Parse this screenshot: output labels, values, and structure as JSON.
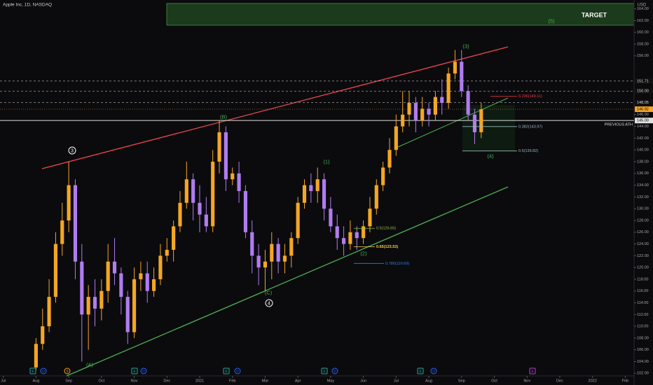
{
  "chart_data": {
    "type": "candlestick",
    "title": "Apple Inc, 1D, NASDAQ",
    "currency": "USD",
    "up_color": "#f5a623",
    "down_color": "#b07cf0",
    "grid": false,
    "xlim": [
      -0.1,
      19.27
    ],
    "xticks": [
      {
        "value": 0,
        "label": "Jul"
      },
      {
        "value": 1,
        "label": "Aug"
      },
      {
        "value": 2,
        "label": "Sep"
      },
      {
        "value": 3,
        "label": "Oct"
      },
      {
        "value": 4,
        "label": "Nov"
      },
      {
        "value": 5,
        "label": "Dec"
      },
      {
        "value": 6,
        "label": "2021"
      },
      {
        "value": 7,
        "label": "Feb"
      },
      {
        "value": 8,
        "label": "Mar"
      },
      {
        "value": 9,
        "label": "Apr"
      },
      {
        "value": 10,
        "label": "May"
      },
      {
        "value": 11,
        "label": "Jun"
      },
      {
        "value": 12,
        "label": "Jul"
      },
      {
        "value": 13,
        "label": "Aug"
      },
      {
        "value": 14,
        "label": "Sep"
      },
      {
        "value": 15,
        "label": "Oct"
      },
      {
        "value": 16,
        "label": "Nov"
      },
      {
        "value": 17,
        "label": "Dec"
      },
      {
        "value": 18,
        "label": "2022"
      },
      {
        "value": 19,
        "label": "Feb"
      }
    ],
    "ylim": [
      101.2,
      165.5
    ],
    "yticks": [
      {
        "value": 102,
        "label": "102.00"
      },
      {
        "value": 104,
        "label": "104.00"
      },
      {
        "value": 106,
        "label": "106.00"
      },
      {
        "value": 108,
        "label": "108.00"
      },
      {
        "value": 110,
        "label": "110.00"
      },
      {
        "value": 112,
        "label": "112.00"
      },
      {
        "value": 114,
        "label": "114.00"
      },
      {
        "value": 116,
        "label": "116.00"
      },
      {
        "value": 118,
        "label": "118.00"
      },
      {
        "value": 120,
        "label": "120.00"
      },
      {
        "value": 122,
        "label": "122.00"
      },
      {
        "value": 124,
        "label": "124.00"
      },
      {
        "value": 126,
        "label": "126.00"
      },
      {
        "value": 128,
        "label": "128.00"
      },
      {
        "value": 130,
        "label": "130.00"
      },
      {
        "value": 132,
        "label": "132.00"
      },
      {
        "value": 134,
        "label": "134.00"
      },
      {
        "value": 136,
        "label": "136.00"
      },
      {
        "value": 138,
        "label": "138.00"
      },
      {
        "value": 140,
        "label": "140.00"
      },
      {
        "value": 142,
        "label": "142.00"
      },
      {
        "value": 144,
        "label": "144.00"
      },
      {
        "value": 146,
        "label": "146.00"
      },
      {
        "value": 156,
        "label": "156.00"
      },
      {
        "value": 158,
        "label": "158.00"
      },
      {
        "value": 160,
        "label": "160.00"
      },
      {
        "value": 162,
        "label": "162.00"
      },
      {
        "value": 164,
        "label": "164.00"
      }
    ],
    "x": [
      1.0,
      1.2,
      1.4,
      1.6,
      1.8,
      2.0,
      2.2,
      2.4,
      2.6,
      2.8,
      3.0,
      3.2,
      3.4,
      3.6,
      3.8,
      4.0,
      4.2,
      4.4,
      4.6,
      4.8,
      5.0,
      5.2,
      5.4,
      5.6,
      5.8,
      6.0,
      6.2,
      6.4,
      6.6,
      6.8,
      7.0,
      7.2,
      7.4,
      7.6,
      7.8,
      8.0,
      8.2,
      8.4,
      8.6,
      8.8,
      9.0,
      9.2,
      9.4,
      9.6,
      9.8,
      10.0,
      10.2,
      10.4,
      10.6,
      10.8,
      11.0,
      11.2,
      11.4,
      11.6,
      11.8,
      12.0,
      12.2,
      12.4,
      12.6,
      12.8,
      13.0,
      13.2,
      13.4,
      13.6,
      13.8,
      14.0,
      14.2,
      14.4,
      14.6
    ],
    "open": [
      103,
      107,
      110,
      115,
      124,
      128,
      134,
      121,
      112,
      115,
      113,
      116,
      121,
      119,
      115,
      109,
      118,
      119,
      116,
      118,
      122,
      123,
      127,
      131,
      135,
      131,
      129,
      127,
      138,
      143,
      135,
      136,
      133,
      126,
      122,
      120,
      121,
      124,
      121,
      122,
      125,
      131,
      134,
      133,
      135,
      130,
      127,
      125,
      124,
      126,
      125,
      127,
      130,
      134,
      137,
      140,
      144,
      146,
      148,
      145,
      147,
      146,
      149,
      148,
      153,
      155,
      150,
      146,
      143
    ],
    "high": [
      108,
      113,
      118,
      126,
      131,
      138,
      135,
      124,
      117,
      118,
      118,
      124,
      125,
      120,
      116,
      120,
      121,
      121,
      120,
      124,
      125,
      128,
      133,
      138,
      136,
      134,
      132,
      140,
      145,
      144,
      137,
      138,
      134,
      128,
      124,
      123,
      126,
      125,
      124,
      126,
      132,
      135,
      136,
      137,
      136,
      132,
      129,
      127,
      128,
      127,
      128,
      132,
      135,
      138,
      142,
      146,
      150,
      150,
      149,
      149,
      148,
      150,
      152,
      154,
      157,
      157,
      151,
      147,
      148
    ],
    "low": [
      102.5,
      106,
      109,
      114,
      122,
      126,
      118,
      104,
      106,
      110,
      111,
      114,
      117,
      112,
      107,
      108,
      116,
      114,
      115,
      117,
      121,
      121,
      126,
      130,
      128,
      126,
      126,
      126,
      136,
      133,
      134,
      131,
      125,
      119,
      117,
      116,
      118,
      119,
      119,
      120,
      124,
      130,
      131,
      131,
      128,
      126,
      123,
      122,
      123,
      123,
      124,
      126,
      129,
      133,
      136,
      139,
      143,
      144,
      143,
      144,
      144,
      145,
      146,
      147,
      152,
      149,
      145,
      141,
      142
    ],
    "close": [
      107,
      110,
      115,
      124,
      128,
      134,
      121,
      112,
      115,
      113,
      116,
      121,
      119,
      115,
      109,
      118,
      119,
      116,
      118,
      122,
      123,
      127,
      131,
      135,
      131,
      129,
      127,
      138,
      143,
      135,
      136,
      133,
      126,
      122,
      120,
      121,
      124,
      121,
      122,
      125,
      131,
      134,
      133,
      135,
      130,
      127,
      125,
      124,
      126,
      125,
      127,
      130,
      134,
      137,
      140,
      144,
      146,
      148,
      145,
      147,
      146,
      149,
      148,
      153,
      155,
      150,
      146,
      143,
      146.92
    ],
    "levels": [
      {
        "value": 151.71,
        "label": "151.71"
      },
      {
        "value": 150,
        "label": "150.00"
      },
      {
        "value": 148.05,
        "label": "148.05"
      },
      {
        "value": 145,
        "label": "145.00"
      }
    ],
    "last_price": {
      "value": 146.92,
      "label": "146.92"
    },
    "ath_label": "PREVIOUS ATH",
    "fib_labels": [
      {
        "value": 149.11,
        "label": "0.236(149.11)"
      },
      {
        "value": 143.97,
        "label": "0.382(143.97)"
      },
      {
        "value": 139.82,
        "label": "0.5(139.82)"
      },
      {
        "value": 126.65,
        "label": "0.5(126.65)"
      },
      {
        "value": 123.53,
        "label": "0.65(123.53)"
      },
      {
        "value": 120.69,
        "label": "0.786(120.69)"
      }
    ],
    "target_label": "TARGET",
    "wave_labels": [
      "3",
      "(B)",
      "(1)",
      "(3)",
      "(5)",
      "(A)",
      "(C)",
      "4",
      "(2)",
      "(4)"
    ],
    "events": [
      "E",
      "D",
      "S",
      "E",
      "D",
      "E",
      "D",
      "E",
      "D",
      "E",
      "D",
      "E"
    ]
  }
}
